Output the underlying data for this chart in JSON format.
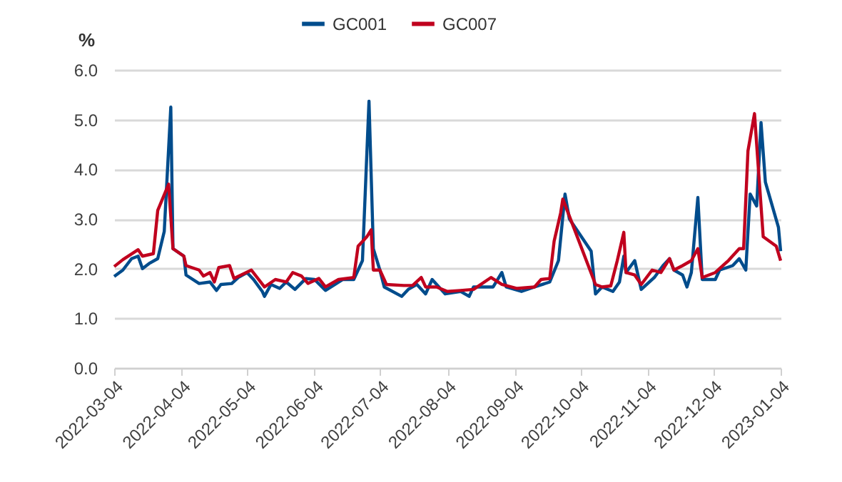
{
  "chart_data": {
    "type": "line",
    "ylabel": "%",
    "xlim": [
      "2022-03-04",
      "2023-01-04"
    ],
    "xticks": [
      "2022-03-04",
      "2022-04-04",
      "2022-05-04",
      "2022-06-04",
      "2022-07-04",
      "2022-08-04",
      "2022-09-04",
      "2022-10-04",
      "2022-11-04",
      "2022-12-04",
      "2023-01-04"
    ],
    "ylim": [
      0,
      6
    ],
    "yticks": [
      {
        "value": 0,
        "label": "0.0"
      },
      {
        "value": 1,
        "label": "1.0"
      },
      {
        "value": 2,
        "label": "2.0"
      },
      {
        "value": 3,
        "label": "3.0"
      },
      {
        "value": 4,
        "label": "4.0"
      },
      {
        "value": 5,
        "label": "5.0"
      },
      {
        "value": 6,
        "label": "6.0"
      }
    ],
    "grid": "y",
    "legend": "top",
    "line_style": "solid",
    "marker": "none",
    "series": [
      {
        "name": "GC001",
        "color": "#004c8c",
        "x": [
          "2022-03-04",
          "2022-03-08",
          "2022-03-12",
          "2022-03-15",
          "2022-03-17",
          "2022-03-20",
          "2022-03-24",
          "2022-03-27",
          "2022-03-30",
          "2022-03-31",
          "2022-04-05",
          "2022-04-06",
          "2022-04-12",
          "2022-04-17",
          "2022-04-20",
          "2022-04-22",
          "2022-04-27",
          "2022-04-30",
          "2022-05-04",
          "2022-05-07",
          "2022-05-11",
          "2022-05-12",
          "2022-05-15",
          "2022-05-19",
          "2022-05-22",
          "2022-05-26",
          "2022-05-31",
          "2022-06-04",
          "2022-06-09",
          "2022-06-17",
          "2022-06-22",
          "2022-06-26",
          "2022-06-29",
          "2022-07-01",
          "2022-07-04",
          "2022-07-06",
          "2022-07-14",
          "2022-07-17",
          "2022-07-21",
          "2022-07-25",
          "2022-07-28",
          "2022-08-03",
          "2022-08-10",
          "2022-08-14",
          "2022-08-16",
          "2022-08-25",
          "2022-08-29",
          "2022-08-31",
          "2022-09-07",
          "2022-09-13",
          "2022-09-20",
          "2022-09-24",
          "2022-09-27",
          "2022-09-29",
          "2022-10-09",
          "2022-10-11",
          "2022-10-14",
          "2022-10-19",
          "2022-10-22",
          "2022-10-24",
          "2022-10-25",
          "2022-10-29",
          "2022-11-01",
          "2022-11-07",
          "2022-11-11",
          "2022-11-14",
          "2022-11-16",
          "2022-11-20",
          "2022-11-22",
          "2022-11-24",
          "2022-11-27",
          "2022-11-29",
          "2022-12-05",
          "2022-12-07",
          "2022-12-13",
          "2022-12-16",
          "2022-12-19",
          "2022-12-21",
          "2022-12-24",
          "2022-12-26",
          "2022-12-28",
          "2023-01-03",
          "2023-01-04"
        ],
        "values": [
          1.84,
          1.97,
          2.2,
          2.25,
          2.0,
          2.1,
          2.2,
          2.75,
          5.25,
          2.4,
          2.25,
          1.87,
          1.7,
          1.73,
          1.56,
          1.68,
          1.7,
          1.82,
          1.92,
          1.78,
          1.54,
          1.44,
          1.68,
          1.6,
          1.73,
          1.58,
          1.8,
          1.78,
          1.56,
          1.78,
          1.78,
          2.16,
          5.37,
          2.4,
          1.97,
          1.63,
          1.44,
          1.58,
          1.68,
          1.49,
          1.78,
          1.49,
          1.54,
          1.44,
          1.63,
          1.63,
          1.92,
          1.63,
          1.54,
          1.63,
          1.73,
          2.16,
          3.5,
          3.0,
          2.35,
          1.49,
          1.63,
          1.54,
          1.73,
          2.25,
          1.92,
          2.16,
          1.58,
          1.82,
          2.06,
          2.2,
          1.97,
          1.87,
          1.63,
          1.92,
          3.43,
          1.78,
          1.78,
          1.97,
          2.06,
          2.2,
          1.97,
          3.5,
          3.26,
          4.94,
          3.74,
          2.83,
          2.35
        ]
      },
      {
        "name": "GC007",
        "color": "#c0001e",
        "x": [
          "2022-03-04",
          "2022-03-08",
          "2022-03-15",
          "2022-03-17",
          "2022-03-22",
          "2022-03-24",
          "2022-03-29",
          "2022-03-31",
          "2022-04-05",
          "2022-04-06",
          "2022-04-12",
          "2022-04-14",
          "2022-04-17",
          "2022-04-19",
          "2022-04-21",
          "2022-04-26",
          "2022-04-28",
          "2022-05-06",
          "2022-05-12",
          "2022-05-17",
          "2022-05-22",
          "2022-05-25",
          "2022-05-29",
          "2022-06-01",
          "2022-06-06",
          "2022-06-09",
          "2022-06-15",
          "2022-06-22",
          "2022-06-24",
          "2022-06-28",
          "2022-06-30",
          "2022-07-01",
          "2022-07-04",
          "2022-07-07",
          "2022-07-15",
          "2022-07-19",
          "2022-07-23",
          "2022-07-25",
          "2022-07-30",
          "2022-08-04",
          "2022-08-10",
          "2022-08-16",
          "2022-08-24",
          "2022-08-29",
          "2022-09-05",
          "2022-09-13",
          "2022-09-16",
          "2022-09-20",
          "2022-09-22",
          "2022-09-25",
          "2022-09-26",
          "2022-09-28",
          "2022-10-11",
          "2022-10-14",
          "2022-10-18",
          "2022-10-21",
          "2022-10-24",
          "2022-10-25",
          "2022-10-29",
          "2022-11-01",
          "2022-11-06",
          "2022-11-10",
          "2022-11-14",
          "2022-11-16",
          "2022-11-20",
          "2022-11-24",
          "2022-11-27",
          "2022-11-29",
          "2022-12-05",
          "2022-12-11",
          "2022-12-16",
          "2022-12-18",
          "2022-12-20",
          "2022-12-23",
          "2022-12-27",
          "2023-01-02",
          "2023-01-04"
        ],
        "values": [
          2.04,
          2.18,
          2.38,
          2.25,
          2.3,
          3.17,
          3.7,
          2.4,
          2.25,
          2.06,
          1.97,
          1.85,
          1.92,
          1.73,
          2.02,
          2.06,
          1.8,
          1.97,
          1.63,
          1.78,
          1.73,
          1.92,
          1.85,
          1.7,
          1.8,
          1.63,
          1.78,
          1.82,
          2.45,
          2.64,
          2.78,
          1.97,
          1.97,
          1.68,
          1.66,
          1.66,
          1.82,
          1.63,
          1.63,
          1.54,
          1.56,
          1.58,
          1.82,
          1.68,
          1.6,
          1.63,
          1.78,
          1.8,
          2.55,
          3.12,
          3.4,
          3.17,
          1.68,
          1.63,
          1.65,
          2.16,
          2.73,
          1.92,
          1.87,
          1.68,
          1.97,
          1.92,
          2.2,
          1.97,
          2.06,
          2.16,
          2.4,
          1.82,
          1.92,
          2.16,
          2.4,
          2.4,
          4.37,
          5.12,
          2.64,
          2.45,
          2.16
        ]
      }
    ]
  }
}
